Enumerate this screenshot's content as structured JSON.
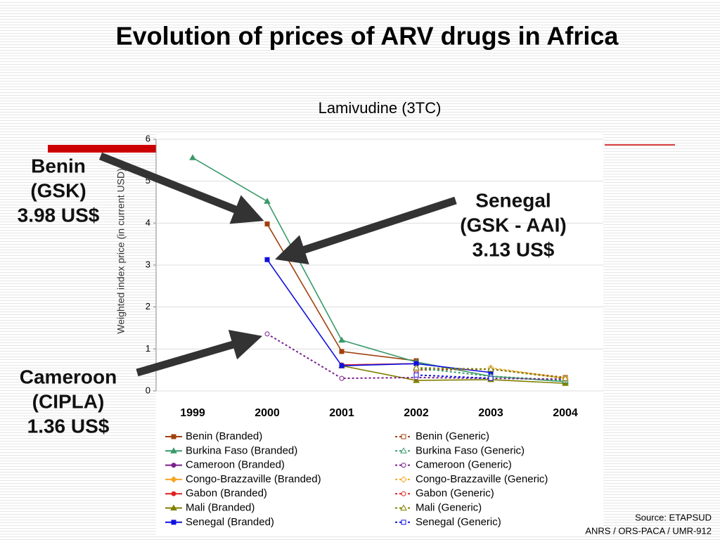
{
  "chart_data": {
    "type": "line",
    "title": "Evolution of prices of ARV drugs in Africa",
    "subtitle": "Lamivudine (3TC)",
    "y_label": "Weighted index price (in current USD)",
    "categories": [
      "1999",
      "2000",
      "2001",
      "2002",
      "2003",
      "2004"
    ],
    "ylim": [
      0,
      6
    ],
    "yticks": [
      0,
      1,
      2,
      3,
      4,
      5,
      6
    ],
    "series": [
      {
        "name": "Benin (Branded)",
        "color": "#a0410d",
        "marker": "square",
        "dashed": false,
        "values": [
          null,
          3.98,
          0.94,
          0.72,
          null,
          null
        ]
      },
      {
        "name": "Burkina Faso (Branded)",
        "color": "#3a9a6a",
        "marker": "triangle",
        "dashed": false,
        "values": [
          5.56,
          4.52,
          1.21,
          0.69,
          0.35,
          0.22
        ]
      },
      {
        "name": "Cameroon (Branded)",
        "color": "#7b1f8e",
        "marker": "circle",
        "dashed": false,
        "values": [
          null,
          null,
          0.62,
          0.65,
          null,
          null
        ]
      },
      {
        "name": "Congo-Brazzaville (Branded)",
        "color": "#f5a623",
        "marker": "diamond",
        "dashed": false,
        "values": [
          null,
          null,
          null,
          null,
          null,
          null
        ]
      },
      {
        "name": "Gabon (Branded)",
        "color": "#e02020",
        "marker": "circle",
        "dashed": false,
        "values": [
          null,
          null,
          0.62,
          0.65,
          null,
          null
        ]
      },
      {
        "name": "Mali (Branded)",
        "color": "#808000",
        "marker": "triangle",
        "dashed": false,
        "values": [
          null,
          null,
          0.6,
          0.25,
          0.27,
          0.18
        ]
      },
      {
        "name": "Senegal (Branded)",
        "color": "#1010e0",
        "marker": "square",
        "dashed": false,
        "values": [
          null,
          3.13,
          0.6,
          0.65,
          0.44,
          null
        ]
      },
      {
        "name": "Benin (Generic)",
        "color": "#a0410d",
        "marker": "square",
        "dashed": true,
        "values": [
          null,
          null,
          null,
          0.5,
          0.52,
          0.32
        ]
      },
      {
        "name": "Burkina Faso (Generic)",
        "color": "#3a9a6a",
        "marker": "triangle",
        "dashed": true,
        "values": [
          null,
          null,
          null,
          0.55,
          0.35,
          0.25
        ]
      },
      {
        "name": "Cameroon (Generic)",
        "color": "#7b1f8e",
        "marker": "circle",
        "dashed": true,
        "values": [
          null,
          1.36,
          0.3,
          0.32,
          0.3,
          0.28
        ]
      },
      {
        "name": "Congo-Brazzaville (Generic)",
        "color": "#f5a623",
        "marker": "diamond",
        "dashed": true,
        "values": [
          null,
          null,
          null,
          null,
          0.55,
          0.3
        ]
      },
      {
        "name": "Gabon (Generic)",
        "color": "#e02020",
        "marker": "circle",
        "dashed": true,
        "values": [
          null,
          null,
          null,
          0.42,
          null,
          null
        ]
      },
      {
        "name": "Mali (Generic)",
        "color": "#808000",
        "marker": "triangle",
        "dashed": true,
        "values": [
          null,
          null,
          null,
          0.55,
          0.52,
          0.3
        ]
      },
      {
        "name": "Senegal (Generic)",
        "color": "#1010e0",
        "marker": "square",
        "dashed": true,
        "values": [
          null,
          null,
          null,
          0.38,
          0.3,
          null
        ]
      }
    ],
    "annotations": [
      {
        "lines": [
          "Benin",
          "(GSK)",
          "3.98 US$"
        ]
      },
      {
        "lines": [
          "Senegal",
          "(GSK - AAI)",
          "3.13 US$"
        ]
      },
      {
        "lines": [
          "Cameroon",
          "(CIPLA)",
          "1.36 US$"
        ]
      }
    ],
    "source": [
      "Source: ETAPSUD",
      "ANRS / ORS-PACA / UMR-912"
    ]
  }
}
